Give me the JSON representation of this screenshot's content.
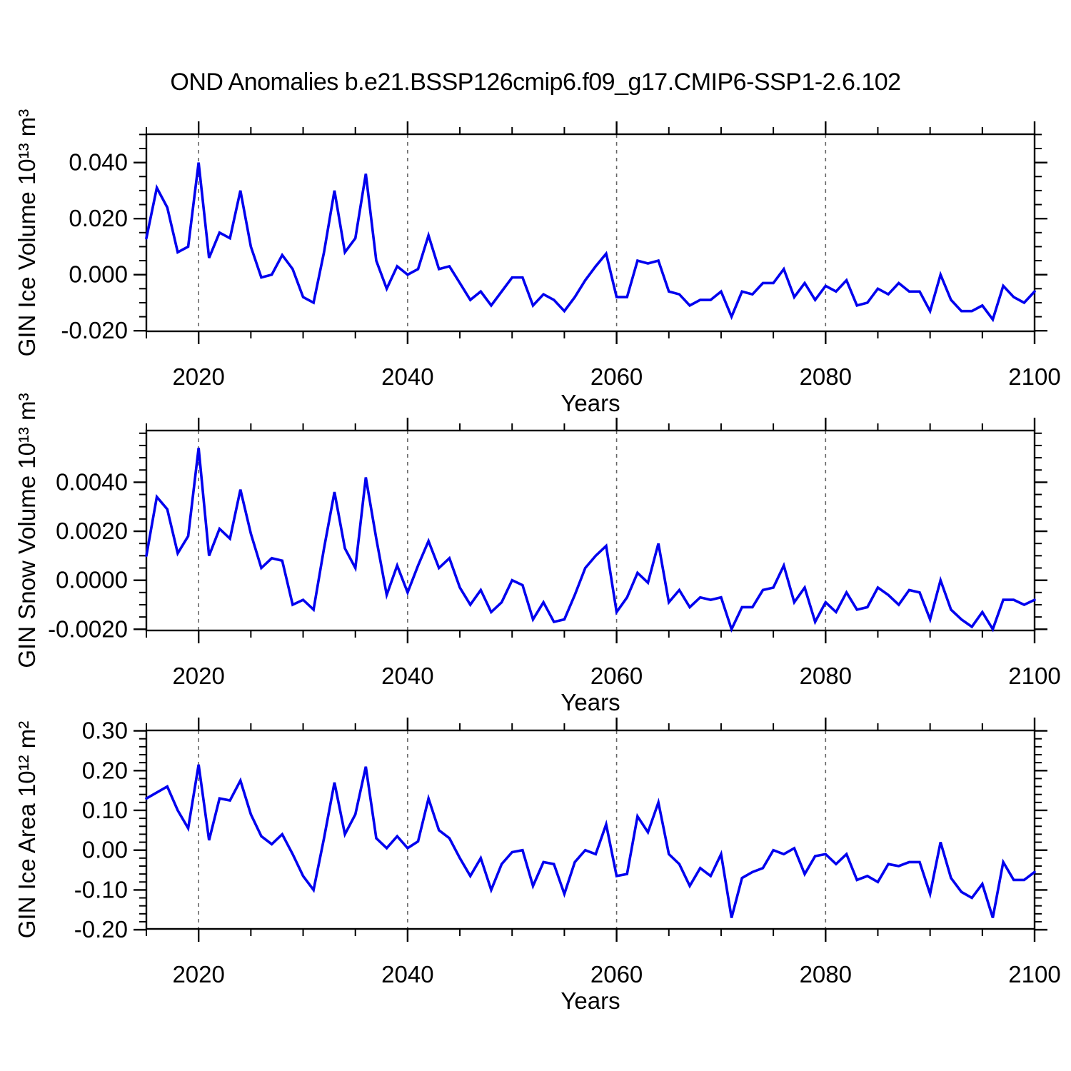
{
  "title": "OND Anomalies b.e21.BSSP126cmip6.f09_g17.CMIP6-SSP1-2.6.102",
  "figure": {
    "background_color": "#ffffff",
    "line_color": "#0000ee",
    "axis_color": "#000000",
    "gridline_color": "#666666"
  },
  "chart_data": [
    {
      "type": "line",
      "series_name": "GIN Ice Volume anomaly",
      "ylabel": "GIN Ice Volume 10¹³ m³",
      "xlabel": "Years",
      "x_start": 2015,
      "x_end": 2100,
      "x_major_ticks": [
        2020,
        2040,
        2060,
        2080,
        2100
      ],
      "x_tick_labels": [
        "2020",
        "2040",
        "2060",
        "2080",
        "2100"
      ],
      "x_minor_step": 5,
      "gridlines_at": [
        2020,
        2040,
        2060,
        2080
      ],
      "ylim": [
        -0.0202,
        0.0501
      ],
      "y_major_ticks": [
        0.04,
        0.02,
        0.0,
        -0.02
      ],
      "y_tick_labels": [
        "0.040",
        "0.020",
        "0.000",
        "-0.020"
      ],
      "y_minor_step": 0.005,
      "grid": "vertical-dashed",
      "legend_position": "none",
      "years": [
        2015,
        2016,
        2017,
        2018,
        2019,
        2020,
        2021,
        2022,
        2023,
        2024,
        2025,
        2026,
        2027,
        2028,
        2029,
        2030,
        2031,
        2032,
        2033,
        2034,
        2035,
        2036,
        2037,
        2038,
        2039,
        2040,
        2041,
        2042,
        2043,
        2044,
        2045,
        2046,
        2047,
        2048,
        2049,
        2050,
        2051,
        2052,
        2053,
        2054,
        2055,
        2056,
        2057,
        2058,
        2059,
        2060,
        2061,
        2062,
        2063,
        2064,
        2065,
        2066,
        2067,
        2068,
        2069,
        2070,
        2071,
        2072,
        2073,
        2074,
        2075,
        2076,
        2077,
        2078,
        2079,
        2080,
        2081,
        2082,
        2083,
        2084,
        2085,
        2086,
        2087,
        2088,
        2089,
        2090,
        2091,
        2092,
        2093,
        2094,
        2095,
        2096,
        2097,
        2098,
        2099,
        2100
      ],
      "values": [
        0.013,
        0.031,
        0.024,
        0.008,
        0.01,
        0.04,
        0.006,
        0.015,
        0.013,
        0.03,
        0.01,
        -0.001,
        0.0,
        0.007,
        0.002,
        -0.008,
        -0.01,
        0.008,
        0.03,
        0.008,
        0.013,
        0.036,
        0.005,
        -0.005,
        0.003,
        0.0,
        0.002,
        0.014,
        0.002,
        0.003,
        -0.003,
        -0.009,
        -0.006,
        -0.011,
        -0.006,
        -0.001,
        -0.001,
        -0.011,
        -0.007,
        -0.009,
        -0.013,
        -0.008,
        -0.002,
        0.003,
        0.0075,
        -0.008,
        -0.008,
        0.005,
        0.004,
        0.005,
        -0.006,
        -0.007,
        -0.011,
        -0.009,
        -0.009,
        -0.006,
        -0.015,
        -0.006,
        -0.007,
        -0.003,
        -0.003,
        0.002,
        -0.008,
        -0.003,
        -0.009,
        -0.004,
        -0.006,
        -0.002,
        -0.011,
        -0.01,
        -0.005,
        -0.007,
        -0.003,
        -0.006,
        -0.006,
        -0.013,
        0.0,
        -0.009,
        -0.013,
        -0.013,
        -0.011,
        -0.016,
        -0.004,
        -0.008,
        -0.01,
        -0.006
      ]
    },
    {
      "type": "line",
      "series_name": "GIN Snow Volume anomaly",
      "ylabel": "GIN Snow Volume 10¹³ m³",
      "xlabel": "Years",
      "x_start": 2015,
      "x_end": 2100,
      "x_major_ticks": [
        2020,
        2040,
        2060,
        2080,
        2100
      ],
      "x_tick_labels": [
        "2020",
        "2040",
        "2060",
        "2080",
        "2100"
      ],
      "x_minor_step": 5,
      "gridlines_at": [
        2020,
        2040,
        2060,
        2080
      ],
      "ylim": [
        -0.00205,
        0.00611
      ],
      "y_major_ticks": [
        0.004,
        0.002,
        0.0,
        -0.002
      ],
      "y_tick_labels": [
        "0.0040",
        "0.0020",
        "0.0000",
        "-0.0020"
      ],
      "y_minor_step": 0.0005,
      "grid": "vertical-dashed",
      "legend_position": "none",
      "years": [
        2015,
        2016,
        2017,
        2018,
        2019,
        2020,
        2021,
        2022,
        2023,
        2024,
        2025,
        2026,
        2027,
        2028,
        2029,
        2030,
        2031,
        2032,
        2033,
        2034,
        2035,
        2036,
        2037,
        2038,
        2039,
        2040,
        2041,
        2042,
        2043,
        2044,
        2045,
        2046,
        2047,
        2048,
        2049,
        2050,
        2051,
        2052,
        2053,
        2054,
        2055,
        2056,
        2057,
        2058,
        2059,
        2060,
        2061,
        2062,
        2063,
        2064,
        2065,
        2066,
        2067,
        2068,
        2069,
        2070,
        2071,
        2072,
        2073,
        2074,
        2075,
        2076,
        2077,
        2078,
        2079,
        2080,
        2081,
        2082,
        2083,
        2084,
        2085,
        2086,
        2087,
        2088,
        2089,
        2090,
        2091,
        2092,
        2093,
        2094,
        2095,
        2096,
        2097,
        2098,
        2099,
        2100
      ],
      "values": [
        0.001,
        0.0034,
        0.0029,
        0.0011,
        0.0018,
        0.0054,
        0.001,
        0.0021,
        0.0017,
        0.0037,
        0.0019,
        0.0005,
        0.0009,
        0.0008,
        -0.001,
        -0.0008,
        -0.0012,
        0.0013,
        0.0036,
        0.0013,
        0.0005,
        0.0042,
        0.0017,
        -0.0006,
        0.0006,
        -0.0005,
        0.0006,
        0.0016,
        0.0005,
        0.0009,
        -0.0003,
        -0.001,
        -0.0004,
        -0.0013,
        -0.0009,
        0.0,
        -0.0002,
        -0.0016,
        -0.0009,
        -0.0017,
        -0.0016,
        -0.0006,
        0.0005,
        0.001,
        0.0014,
        -0.0013,
        -0.0007,
        0.0003,
        -0.0001,
        0.0015,
        -0.0009,
        -0.0004,
        -0.0011,
        -0.0007,
        -0.0008,
        -0.0007,
        -0.002,
        -0.0011,
        -0.0011,
        -0.0004,
        -0.0003,
        0.0006,
        -0.0009,
        -0.0003,
        -0.0017,
        -0.0009,
        -0.0013,
        -0.0005,
        -0.0012,
        -0.0011,
        -0.0003,
        -0.0006,
        -0.001,
        -0.0004,
        -0.0005,
        -0.0016,
        0.0,
        -0.0012,
        -0.0016,
        -0.0019,
        -0.0013,
        -0.002,
        -0.0008,
        -0.0008,
        -0.001,
        -0.0008
      ]
    },
    {
      "type": "line",
      "series_name": "GIN Ice Area anomaly",
      "ylabel": "GIN Ice Area 10¹² m²",
      "xlabel": "Years",
      "x_start": 2015,
      "x_end": 2100,
      "x_major_ticks": [
        2020,
        2040,
        2060,
        2080,
        2100
      ],
      "x_tick_labels": [
        "2020",
        "2040",
        "2060",
        "2080",
        "2100"
      ],
      "x_minor_step": 5,
      "gridlines_at": [
        2020,
        2040,
        2060,
        2080
      ],
      "ylim": [
        -0.198,
        0.301
      ],
      "y_major_ticks": [
        0.3,
        0.2,
        0.1,
        0.0,
        -0.1,
        -0.2
      ],
      "y_tick_labels": [
        "0.30",
        "0.20",
        "0.10",
        "0.00",
        "-0.10",
        "-0.20"
      ],
      "y_minor_step": 0.02,
      "grid": "vertical-dashed",
      "legend_position": "none",
      "years": [
        2015,
        2016,
        2017,
        2018,
        2019,
        2020,
        2021,
        2022,
        2023,
        2024,
        2025,
        2026,
        2027,
        2028,
        2029,
        2030,
        2031,
        2032,
        2033,
        2034,
        2035,
        2036,
        2037,
        2038,
        2039,
        2040,
        2041,
        2042,
        2043,
        2044,
        2045,
        2046,
        2047,
        2048,
        2049,
        2050,
        2051,
        2052,
        2053,
        2054,
        2055,
        2056,
        2057,
        2058,
        2059,
        2060,
        2061,
        2062,
        2063,
        2064,
        2065,
        2066,
        2067,
        2068,
        2069,
        2070,
        2071,
        2072,
        2073,
        2074,
        2075,
        2076,
        2077,
        2078,
        2079,
        2080,
        2081,
        2082,
        2083,
        2084,
        2085,
        2086,
        2087,
        2088,
        2089,
        2090,
        2091,
        2092,
        2093,
        2094,
        2095,
        2096,
        2097,
        2098,
        2099,
        2100
      ],
      "values": [
        0.13,
        0.145,
        0.16,
        0.1,
        0.055,
        0.215,
        0.025,
        0.13,
        0.125,
        0.175,
        0.09,
        0.035,
        0.015,
        0.04,
        -0.01,
        -0.065,
        -0.1,
        0.03,
        0.17,
        0.04,
        0.09,
        0.21,
        0.03,
        0.005,
        0.035,
        0.005,
        0.022,
        0.13,
        0.05,
        0.03,
        -0.02,
        -0.065,
        -0.02,
        -0.1,
        -0.035,
        -0.005,
        0.0,
        -0.09,
        -0.03,
        -0.035,
        -0.11,
        -0.03,
        0.0,
        -0.01,
        0.065,
        -0.065,
        -0.06,
        0.085,
        0.045,
        0.12,
        -0.01,
        -0.035,
        -0.09,
        -0.045,
        -0.065,
        -0.01,
        -0.17,
        -0.07,
        -0.055,
        -0.045,
        0.0,
        -0.01,
        0.005,
        -0.06,
        -0.015,
        -0.01,
        -0.035,
        -0.01,
        -0.075,
        -0.065,
        -0.08,
        -0.035,
        -0.04,
        -0.03,
        -0.03,
        -0.11,
        0.02,
        -0.07,
        -0.105,
        -0.12,
        -0.085,
        -0.17,
        -0.03,
        -0.075,
        -0.075,
        -0.055
      ]
    }
  ]
}
